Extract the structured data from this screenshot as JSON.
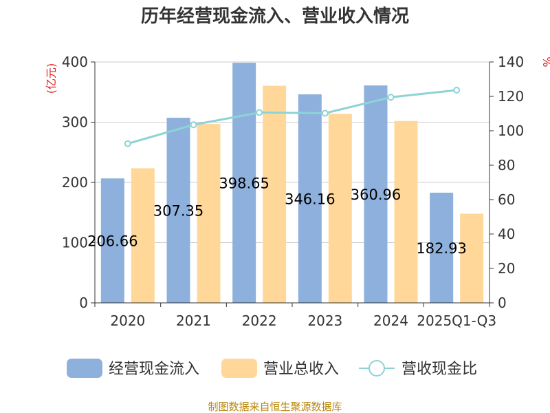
{
  "title": "历年经营现金流入、营业收入情况",
  "source": "制图数据来自恒生聚源数据库",
  "colors": {
    "cash_inflow": "#8eb0dc",
    "revenue": "#ffd899",
    "ratio": "#8dd3d6",
    "axis": "#333333",
    "grid": "#cccccc",
    "unit": "#e02020",
    "source": "#b8860b"
  },
  "chart_data": {
    "type": "bar",
    "title": "历年经营现金流入、营业收入情况",
    "categories": [
      "2020",
      "2021",
      "2022",
      "2023",
      "2024",
      "2025Q1-Q3"
    ],
    "y_left": {
      "unit_label": "(亿元)",
      "ylim": [
        0,
        400
      ],
      "ticks": [
        0,
        100,
        200,
        300,
        400
      ]
    },
    "y_right": {
      "unit_label": "%",
      "ylim": [
        0,
        140
      ],
      "ticks": [
        0,
        20,
        40,
        60,
        80,
        100,
        120,
        140
      ]
    },
    "grid": true,
    "legend_position": "bottom",
    "series": [
      {
        "name": "经营现金流入",
        "type": "bar",
        "axis": "left",
        "values": [
          206.66,
          307.35,
          398.65,
          346.16,
          360.96,
          182.93
        ],
        "data_labels": [
          "206.66",
          "307.35",
          "398.65",
          "346.16",
          "360.96",
          "182.93"
        ]
      },
      {
        "name": "营业总收入",
        "type": "bar",
        "axis": "left",
        "values": [
          223.5,
          297.0,
          360.5,
          314.0,
          302.0,
          148.0
        ]
      },
      {
        "name": "营收现金比",
        "type": "line",
        "axis": "right",
        "values": [
          92.5,
          103.5,
          110.6,
          110.2,
          119.5,
          123.6
        ]
      }
    ]
  }
}
